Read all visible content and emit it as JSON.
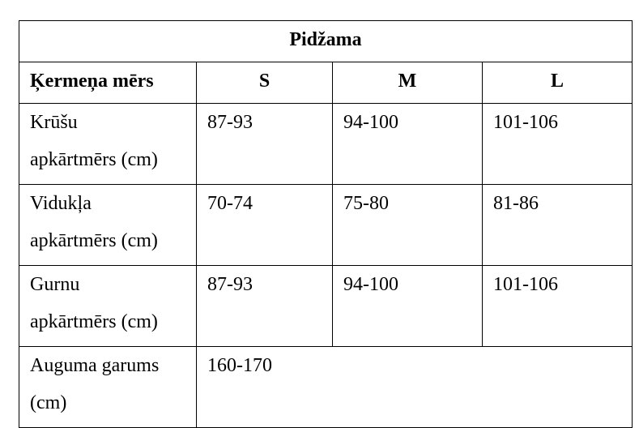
{
  "table": {
    "title": "Pidžama",
    "header": [
      "Ķermeņa mērs",
      "S",
      "M",
      "L"
    ],
    "rows": [
      [
        [
          "Krūšu",
          "apkārtmērs (cm)"
        ],
        "87-93",
        "94-100",
        "101-106"
      ],
      [
        [
          "Vidukļa",
          "apkārtmērs (cm)"
        ],
        "70-74",
        "75-80",
        "81-86"
      ],
      [
        [
          "Gurnu",
          "apkārtmērs (cm)"
        ],
        "87-93",
        "94-100",
        "101-106"
      ],
      [
        [
          "Auguma garums",
          "(cm)"
        ],
        "160-170"
      ]
    ]
  }
}
